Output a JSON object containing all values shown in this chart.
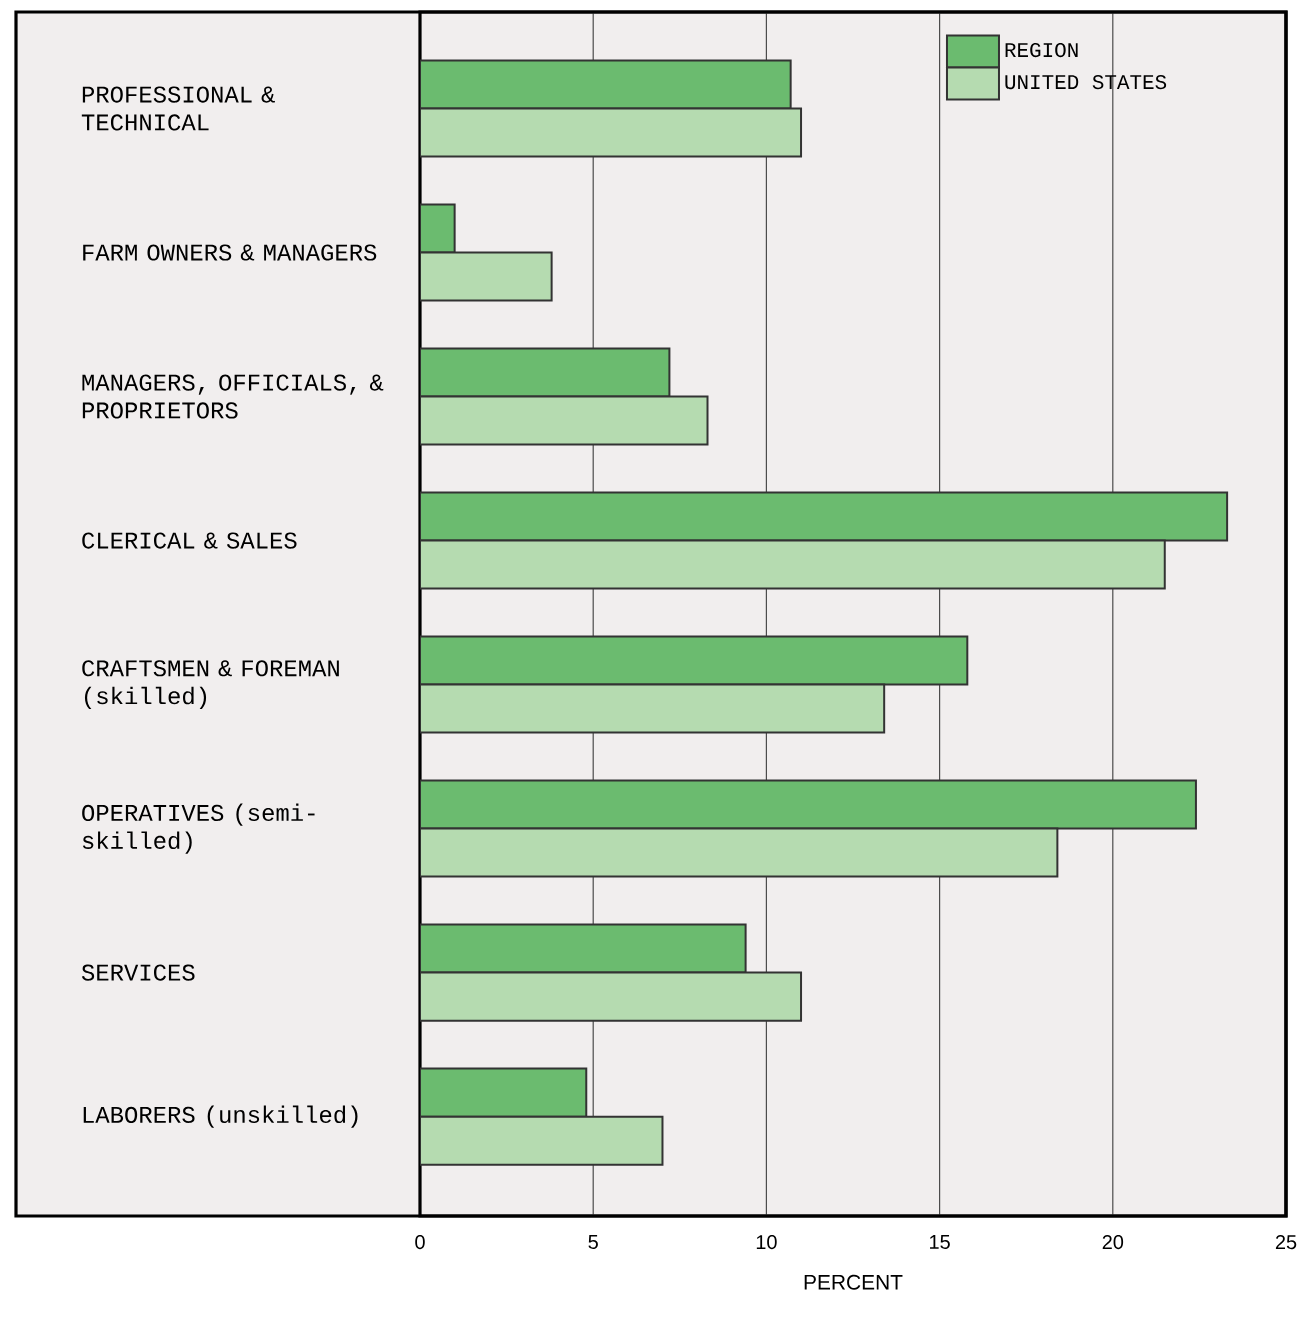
{
  "chart_data": {
    "type": "bar",
    "orientation": "horizontal",
    "xlabel": "PERCENT",
    "categories": [
      "PROFESSIONAL & TECHNICAL",
      "FARM OWNERS & MANAGERS",
      "MANAGERS, OFFICIALS, & PROPRIETORS",
      "CLERICAL & SALES",
      "CRAFTSMEN & FOREMAN (skilled)",
      "OPERATIVES (semi-skilled)",
      "SERVICES",
      "LABORERS (unskilled)"
    ],
    "series": [
      {
        "name": "REGION",
        "color": "#6bbb6f",
        "values": [
          10.7,
          1.0,
          7.2,
          23.3,
          15.8,
          22.4,
          9.4,
          4.8
        ]
      },
      {
        "name": "UNITED STATES",
        "color": "#b5dbb0",
        "values": [
          11.0,
          3.8,
          8.3,
          21.5,
          13.4,
          18.4,
          11.0,
          7.0
        ]
      }
    ],
    "xlim": [
      0,
      25
    ],
    "xticks": [
      0,
      5,
      10,
      15,
      20,
      25
    ],
    "grid": "x",
    "legend": "top right"
  }
}
